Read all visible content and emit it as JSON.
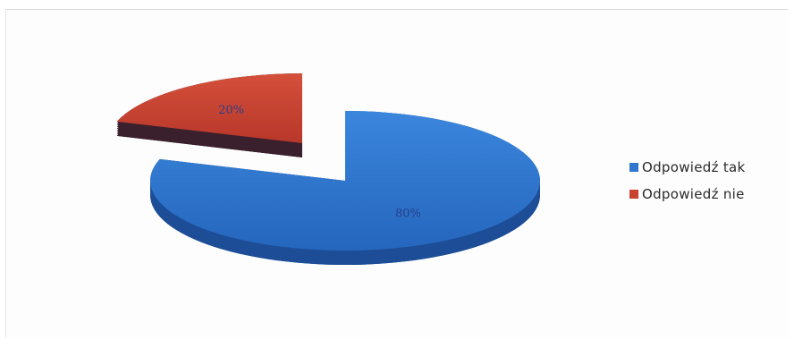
{
  "chart_data": {
    "type": "pie",
    "style": "3d-exploded",
    "title": "",
    "categories": [
      "Odpowiedź tak",
      "Odpowiedź nie"
    ],
    "values": [
      80,
      20
    ],
    "data_labels": [
      "80%",
      "20%"
    ],
    "colors": [
      "#2f76cf",
      "#c9412f"
    ],
    "label_color": "#2a3f8a",
    "legend_position": "right"
  }
}
